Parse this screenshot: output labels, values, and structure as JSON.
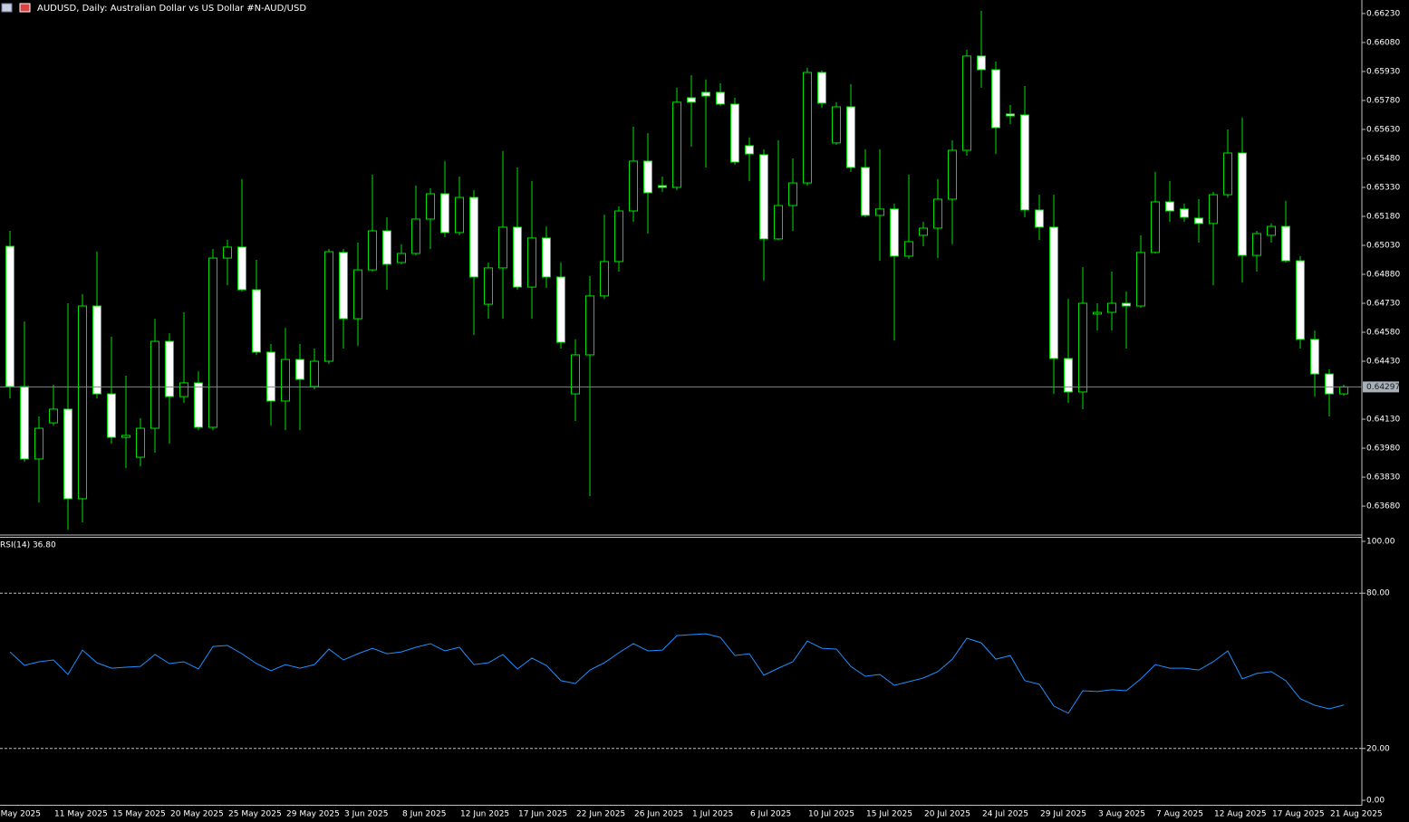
{
  "chart_data": [
    {
      "type": "candlestick",
      "title": "AUDUSD, Daily:  Australian Dollar vs US Dollar #N-AUD/USD",
      "color": "#00e000",
      "up_fill": "#000000",
      "down_fill": "#ffffff",
      "first_x_label": "May 2025",
      "categories": [
        null,
        null,
        null,
        "11 May 2025",
        null,
        null,
        null,
        "15 May 2025",
        null,
        null,
        null,
        "20 May 2025",
        null,
        null,
        null,
        "25 May 2025",
        null,
        null,
        null,
        "29 May 2025",
        null,
        null,
        null,
        "3 Jun 2025",
        null,
        null,
        null,
        "8 Jun 2025",
        null,
        null,
        null,
        "12 Jun 2025",
        null,
        null,
        null,
        "17 Jun 2025",
        null,
        null,
        null,
        "22 Jun 2025",
        null,
        null,
        null,
        "26 Jun 2025",
        null,
        null,
        null,
        "1 Jul 2025",
        null,
        null,
        null,
        "6 Jul 2025",
        null,
        null,
        null,
        "10 Jul 2025",
        null,
        null,
        null,
        "15 Jul 2025",
        null,
        null,
        null,
        "20 Jul 2025",
        null,
        null,
        null,
        "24 Jul 2025",
        null,
        null,
        null,
        "29 Jul 2025",
        null,
        null,
        null,
        "3 Aug 2025",
        null,
        null,
        null,
        "7 Aug 2025",
        null,
        null,
        null,
        "12 Aug 2025",
        null,
        null,
        null,
        "17 Aug 2025",
        null,
        null,
        null,
        "21 Aug 2025",
        null
      ],
      "open": [
        0.65025,
        0.64299,
        0.63924,
        0.64111,
        0.64182,
        0.63718,
        0.64716,
        0.64261,
        0.64036,
        0.63933,
        0.64083,
        0.64533,
        0.64247,
        0.64318,
        0.64088,
        0.64964,
        0.65021,
        0.648,
        0.64477,
        0.64224,
        0.64439,
        0.64299,
        0.6443,
        0.64993,
        0.6465,
        0.64903,
        0.65105,
        0.64941,
        0.64988,
        0.65166,
        0.65297,
        0.65096,
        0.65278,
        0.64725,
        0.64913,
        0.65124,
        0.64814,
        0.65068,
        0.64866,
        0.64261,
        0.64463,
        0.64768,
        0.64946,
        0.65208,
        0.65466,
        0.65339,
        0.6533,
        0.65794,
        0.65822,
        0.65822,
        0.65761,
        0.65546,
        0.65499,
        0.65063,
        0.65236,
        0.65353,
        0.65925,
        0.6556,
        0.65747,
        0.65433,
        0.65185,
        0.65218,
        0.64974,
        0.65082,
        0.65119,
        0.65269,
        0.65522,
        0.6601,
        0.65939,
        0.6571,
        0.65705,
        0.65213,
        0.65124,
        0.64444,
        0.64271,
        0.64674,
        0.64683,
        0.6473,
        0.64716,
        0.64993,
        0.65255,
        0.65218,
        0.65171,
        0.65143,
        0.65292,
        0.65508,
        0.64978,
        0.65082,
        0.65128,
        0.6495,
        0.64543,
        0.64364,
        0.64261
      ],
      "high": [
        0.65105,
        0.64636,
        0.64144,
        0.64308,
        0.6473,
        0.64777,
        0.64997,
        0.64557,
        0.64355,
        0.64135,
        0.6465,
        0.64575,
        0.64683,
        0.64378,
        0.65011,
        0.65058,
        0.65372,
        0.64955,
        0.64519,
        0.64603,
        0.64519,
        0.64496,
        0.65011,
        0.65011,
        0.65044,
        0.65396,
        0.65175,
        0.65035,
        0.65339,
        0.65325,
        0.65466,
        0.65386,
        0.65316,
        0.64941,
        0.65518,
        0.65433,
        0.65363,
        0.65128,
        0.64941,
        0.64543,
        0.64871,
        0.65189,
        0.65232,
        0.65644,
        0.65611,
        0.65386,
        0.65846,
        0.65911,
        0.65888,
        0.65869,
        0.65794,
        0.65588,
        0.65527,
        0.65574,
        0.6548,
        0.65949,
        0.65935,
        0.65771,
        0.65864,
        0.65527,
        0.65527,
        0.65246,
        0.65396,
        0.65152,
        0.65372,
        0.65574,
        0.66043,
        0.66244,
        0.65982,
        0.65757,
        0.65855,
        0.65292,
        0.65292,
        0.64753,
        0.64917,
        0.6473,
        0.64894,
        0.64791,
        0.65082,
        0.6541,
        0.65363,
        0.65246,
        0.65269,
        0.65307,
        0.6563,
        0.65691,
        0.65105,
        0.65143,
        0.6526,
        0.64974,
        0.64589,
        0.64388,
        0.64308
      ],
      "low": [
        0.64238,
        0.6391,
        0.63699,
        0.64097,
        0.63558,
        0.63596,
        0.64238,
        0.64003,
        0.63877,
        0.63886,
        0.63957,
        0.64003,
        0.64214,
        0.64074,
        0.64074,
        0.64824,
        0.64791,
        0.64463,
        0.64097,
        0.64074,
        0.64074,
        0.64285,
        0.64416,
        0.64496,
        0.6451,
        0.64894,
        0.648,
        0.64932,
        0.64978,
        0.65011,
        0.65072,
        0.65082,
        0.64566,
        0.6465,
        0.6465,
        0.648,
        0.6465,
        0.6481,
        0.64496,
        0.64121,
        0.63732,
        0.64753,
        0.64894,
        0.65152,
        0.65091,
        0.65307,
        0.65316,
        0.65541,
        0.65433,
        0.65752,
        0.65447,
        0.65363,
        0.64847,
        0.65058,
        0.65105,
        0.65339,
        0.65743,
        0.6555,
        0.6541,
        0.65175,
        0.6495,
        0.64538,
        0.6496,
        0.65025,
        0.64964,
        0.65035,
        0.65494,
        0.65846,
        0.65503,
        0.65658,
        0.65175,
        0.65058,
        0.64261,
        0.64214,
        0.64182,
        0.64589,
        0.64589,
        0.64496,
        0.64707,
        0.64988,
        0.65152,
        0.65152,
        0.65044,
        0.64824,
        0.65278,
        0.64838,
        0.64894,
        0.65044,
        0.64941,
        0.64496,
        0.64247,
        0.64144,
        0.64252
      ],
      "close": [
        0.64299,
        0.63924,
        0.64083,
        0.64182,
        0.63718,
        0.64716,
        0.64261,
        0.64036,
        0.64046,
        0.64083,
        0.64533,
        0.64247,
        0.64318,
        0.64088,
        0.64964,
        0.65021,
        0.648,
        0.64477,
        0.64224,
        0.64439,
        0.64336,
        0.6443,
        0.64997,
        0.6465,
        0.64903,
        0.65105,
        0.64932,
        0.64988,
        0.65166,
        0.65297,
        0.65096,
        0.65278,
        0.64866,
        0.64913,
        0.65124,
        0.64814,
        0.65068,
        0.64866,
        0.64528,
        0.64463,
        0.64768,
        0.64946,
        0.65208,
        0.65466,
        0.65302,
        0.6533,
        0.65771,
        0.65771,
        0.65803,
        0.65761,
        0.65461,
        0.65503,
        0.65063,
        0.65236,
        0.65353,
        0.65925,
        0.65766,
        0.65747,
        0.65433,
        0.65185,
        0.65218,
        0.64974,
        0.65049,
        0.65119,
        0.65269,
        0.65522,
        0.6601,
        0.65939,
        0.65639,
        0.657,
        0.65213,
        0.65124,
        0.64444,
        0.64271,
        0.6473,
        0.64683,
        0.6473,
        0.64716,
        0.64993,
        0.65255,
        0.65208,
        0.65175,
        0.65143,
        0.65292,
        0.65508,
        0.64978,
        0.65091,
        0.65128,
        0.6495,
        0.64543,
        0.64364,
        0.64261,
        0.64297
      ],
      "last_price": 0.64297,
      "ylim": [
        0.63535,
        0.663
      ],
      "yticks": [
        {
          "value": 0.6623,
          "label": "0.66230"
        },
        {
          "value": 0.6608,
          "label": "0.66080"
        },
        {
          "value": 0.6593,
          "label": "0.65930"
        },
        {
          "value": 0.6578,
          "label": "0.65780"
        },
        {
          "value": 0.6563,
          "label": "0.65630"
        },
        {
          "value": 0.6548,
          "label": "0.65480"
        },
        {
          "value": 0.6533,
          "label": "0.65330"
        },
        {
          "value": 0.6518,
          "label": "0.65180"
        },
        {
          "value": 0.6503,
          "label": "0.65030"
        },
        {
          "value": 0.6488,
          "label": "0.64880"
        },
        {
          "value": 0.6473,
          "label": "0.64730"
        },
        {
          "value": 0.6458,
          "label": "0.64580"
        },
        {
          "value": 0.6443,
          "label": "0.64430"
        },
        {
          "value": 0.6413,
          "label": "0.64130"
        },
        {
          "value": 0.6398,
          "label": "0.63980"
        },
        {
          "value": 0.6383,
          "label": "0.63830"
        },
        {
          "value": 0.6368,
          "label": "0.63680"
        }
      ]
    },
    {
      "type": "line",
      "title": "RSI(14) 36.80",
      "color": "#1e90ff",
      "values": [
        57.3,
        52.1,
        53.5,
        54.2,
        48.6,
        58.0,
        53.1,
        51.0,
        51.4,
        51.7,
        56.3,
        52.8,
        53.5,
        50.7,
        59.4,
        59.8,
        56.6,
        52.8,
        50.0,
        52.4,
        51.0,
        52.4,
        58.4,
        54.2,
        56.6,
        58.7,
        56.6,
        57.3,
        59.1,
        60.5,
        57.7,
        59.1,
        52.4,
        53.1,
        56.3,
        50.7,
        54.9,
        52.1,
        46.2,
        45.1,
        50.3,
        53.1,
        57.0,
        60.5,
        57.7,
        58.0,
        63.6,
        64.0,
        64.3,
        62.9,
        55.9,
        56.6,
        48.3,
        51.0,
        53.5,
        61.5,
        58.7,
        58.4,
        51.7,
        47.9,
        48.6,
        44.4,
        45.8,
        47.2,
        49.7,
        54.5,
        62.6,
        60.8,
        54.5,
        55.9,
        46.2,
        44.8,
        36.4,
        33.6,
        42.3,
        42.0,
        42.7,
        42.3,
        46.9,
        52.4,
        51.0,
        51.0,
        50.3,
        53.5,
        57.7,
        46.9,
        49.0,
        49.7,
        46.2,
        39.2,
        36.7,
        35.3,
        36.8
      ],
      "levels": [
        80,
        20
      ],
      "ylim": [
        0,
        100
      ],
      "yticks": [
        {
          "value": 100,
          "label": "100.00"
        },
        {
          "value": 80,
          "label": "80.00"
        },
        {
          "value": 20,
          "label": "20.00"
        },
        {
          "value": 0,
          "label": "0.00"
        }
      ]
    }
  ]
}
